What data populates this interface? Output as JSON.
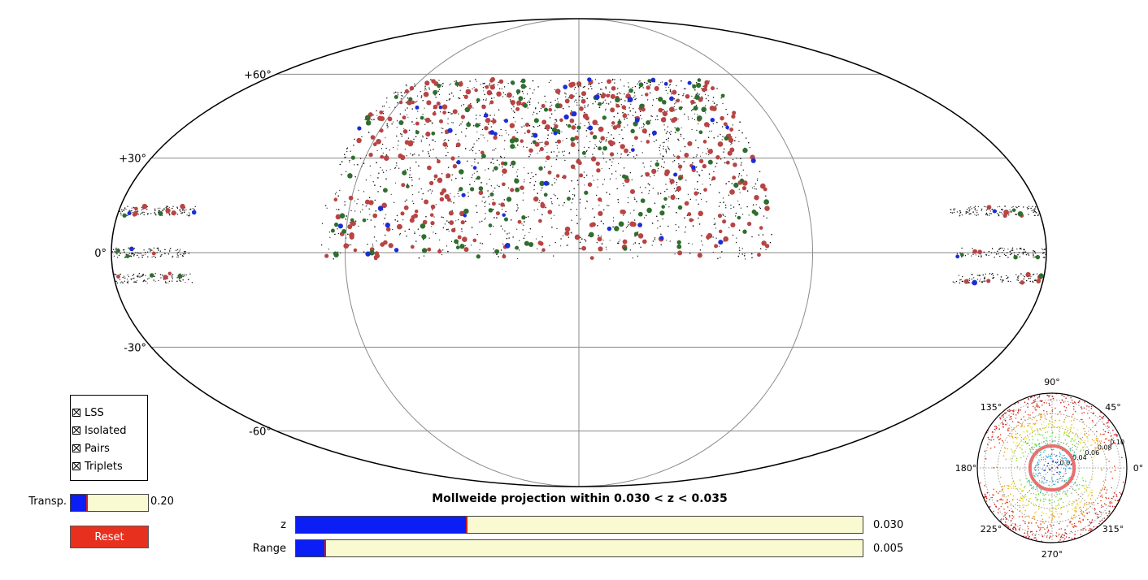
{
  "chart_data": [
    {
      "type": "scatter",
      "projection": "mollweide",
      "title": "Mollweide projection within 0.030 < z < 0.035",
      "lat_ticks": [
        "+60°",
        "+30°",
        "0°",
        "-30°",
        "-60°"
      ],
      "lat_values": [
        60,
        30,
        0,
        -30,
        -60
      ],
      "lon_meridians": [
        -180,
        -90,
        0,
        90,
        180
      ],
      "grid": true,
      "series": [
        {
          "name": "LSS",
          "color": "#111111",
          "marker": "dot-small"
        },
        {
          "name": "Isolated",
          "color": "#b84444",
          "marker": "dot"
        },
        {
          "name": "Pairs",
          "color": "#2e6e2e",
          "marker": "dot"
        },
        {
          "name": "Triplets",
          "color": "#1a2ed8",
          "marker": "dot"
        }
      ],
      "footprints": [
        {
          "lon": [
            -100,
            75
          ],
          "lat": [
            -2,
            58
          ]
        },
        {
          "lon": [
            145,
            180
          ],
          "lat": [
            -8,
            15
          ]
        },
        {
          "lon": [
            -180,
            -150
          ],
          "lat": [
            -8,
            15
          ]
        }
      ]
    },
    {
      "type": "scatter",
      "projection": "polar",
      "angle_ticks": [
        "90°",
        "45°",
        "0°",
        "315°",
        "270°",
        "225°",
        "180°",
        "135°"
      ],
      "angle_values": [
        90,
        45,
        0,
        315,
        270,
        225,
        180,
        135
      ],
      "radial_ticks": [
        "0.02",
        "0.04",
        "0.06",
        "0.08",
        "0.10"
      ],
      "radial_values": [
        0.02,
        0.04,
        0.06,
        0.08,
        0.1
      ],
      "rmax": 0.11,
      "highlight_ring": [
        0.03,
        0.035
      ],
      "highlight_color": "#e87070"
    }
  ],
  "legend": {
    "items": [
      "LSS",
      "Isolated",
      "Pairs",
      "Triplets"
    ]
  },
  "controls": {
    "transp": {
      "label": "Transp.",
      "value_text": "0.20",
      "value": 0.2,
      "fraction": 0.2
    },
    "z": {
      "label": "z",
      "value_text": "0.030",
      "value": 0.03,
      "fraction": 0.3
    },
    "range": {
      "label": "Range",
      "value_text": "0.005",
      "value": 0.005,
      "fraction": 0.05
    },
    "reset_label": "Reset"
  },
  "colors": {
    "slider_fill": "#0a1ef5",
    "slider_track": "#fafad2",
    "reset": "#e8301e"
  }
}
